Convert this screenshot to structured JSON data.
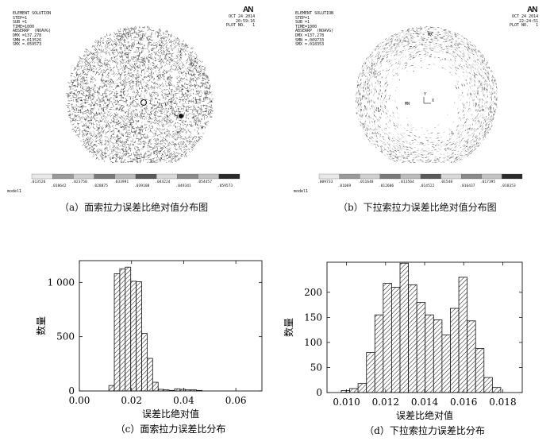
{
  "panel_a": {
    "logo": "AN",
    "header_left": [
      "ELEMENT SOLUTION",
      "STEP=1",
      "SUB =1",
      "TIME=1000",
      "ABSERRP  (NOAVG)",
      "DMX =137.278",
      "SMN =.013526",
      "SMX =.059573"
    ],
    "header_right": [
      "OCT 24 2014",
      "20:59:16",
      "PLOT NO.   1"
    ],
    "mx_label": "MX",
    "mn_label": "MN",
    "legend_top": [
      ".013526",
      ".023758",
      ".033991",
      ".044224",
      ".054457"
    ],
    "legend_bottom": [
      ".018642",
      ".028875",
      ".039108",
      ".049341",
      ".059573"
    ],
    "model": "model1",
    "caption": "（a）面索拉力误差比绝对值分布图"
  },
  "panel_b": {
    "logo": "AN",
    "header_left": [
      "ELEMENT SOLUTION",
      "STEP=1",
      "SUB =1",
      "TIME=1000",
      "ABSERRP  (NOAVG)",
      "DMX =137.278",
      "SMN =.009733",
      "SMX =.018353"
    ],
    "header_right": [
      "OCT 24 2014",
      "22:24:51",
      "PLOT NO.   1"
    ],
    "mx_label": "MX",
    "mn_label": "MN",
    "axis_x": "X",
    "axis_y": "Y",
    "legend_top": [
      ".009733",
      ".011648",
      ".013564",
      ".01548",
      ".017395"
    ],
    "legend_bottom": [
      ".01069",
      ".012606",
      ".014522",
      ".016437",
      ".018353"
    ],
    "model": "model1",
    "caption": "（b）下拉索拉力误差比绝对值分布图"
  },
  "chart_data": [
    {
      "type": "bar",
      "xlabel": "误差比绝对值",
      "ylabel": "数量",
      "caption": "（c）面索拉力误差比分布",
      "xlim": [
        0.0,
        0.07
      ],
      "ylim": [
        0,
        1200
      ],
      "x_ticks": [
        "0.00",
        "0.02",
        "0.04",
        "0.06"
      ],
      "y_ticks": [
        "0",
        "500",
        "1 000"
      ],
      "bin_width": 0.0021,
      "bin_starts": [
        0.0113,
        0.0134,
        0.0155,
        0.0176,
        0.0197,
        0.0218,
        0.0239,
        0.026,
        0.0281,
        0.0302,
        0.0323,
        0.0344,
        0.0365,
        0.0386,
        0.0407,
        0.0428,
        0.0449
      ],
      "values": [
        50,
        1080,
        1125,
        1140,
        1010,
        1005,
        530,
        300,
        80,
        15,
        10,
        5,
        20,
        15,
        10,
        10,
        5
      ],
      "fill_pattern": "diagonal-hatch"
    },
    {
      "type": "bar",
      "xlabel": "误差比绝对值",
      "ylabel": "数量",
      "caption": "（d）下拉索拉力误差比分布",
      "xlim": [
        0.009,
        0.019
      ],
      "ylim": [
        0,
        260
      ],
      "x_ticks": [
        "0.010",
        "0.012",
        "0.014",
        "0.016",
        "0.018"
      ],
      "y_ticks": [
        "0",
        "50",
        "100",
        "150",
        "200"
      ],
      "bin_width": 0.00043,
      "bin_starts": [
        0.00973,
        0.01016,
        0.01059,
        0.01102,
        0.01145,
        0.01188,
        0.01231,
        0.01274,
        0.01317,
        0.0136,
        0.01403,
        0.01446,
        0.01489,
        0.01532,
        0.01575,
        0.01618,
        0.01661,
        0.01704,
        0.01747
      ],
      "values": [
        4,
        8,
        18,
        80,
        155,
        218,
        210,
        258,
        215,
        180,
        155,
        145,
        115,
        168,
        230,
        143,
        88,
        30,
        10
      ],
      "fill_pattern": "diagonal-hatch"
    }
  ]
}
